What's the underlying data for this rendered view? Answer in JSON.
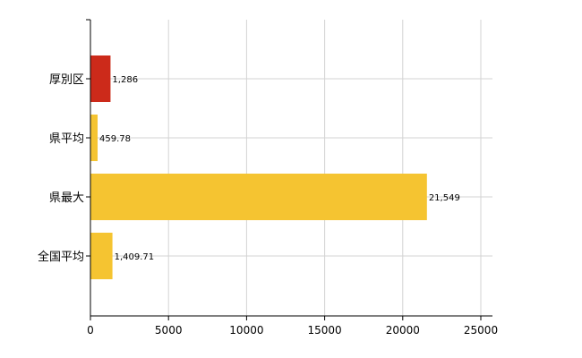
{
  "chart_data": {
    "type": "bar",
    "orientation": "horizontal",
    "categories": [
      "厚別区",
      "県平均",
      "県最大",
      "全国平均"
    ],
    "values": [
      1286,
      459.78,
      21549,
      1409.71
    ],
    "value_labels": [
      "1,286",
      "459.78",
      "21,549",
      "1,409.71"
    ],
    "bar_colors": [
      "#cc2a1a",
      "#f5c431",
      "#f5c431",
      "#f5c431"
    ],
    "xlim": [
      0,
      25000
    ],
    "xticks": [
      0,
      5000,
      10000,
      15000,
      20000,
      25000
    ],
    "xtick_labels": [
      "0",
      "5000",
      "10000",
      "15000",
      "20000",
      "25000"
    ],
    "grid": true,
    "legend": "none",
    "title": "",
    "xlabel": "",
    "ylabel": ""
  }
}
